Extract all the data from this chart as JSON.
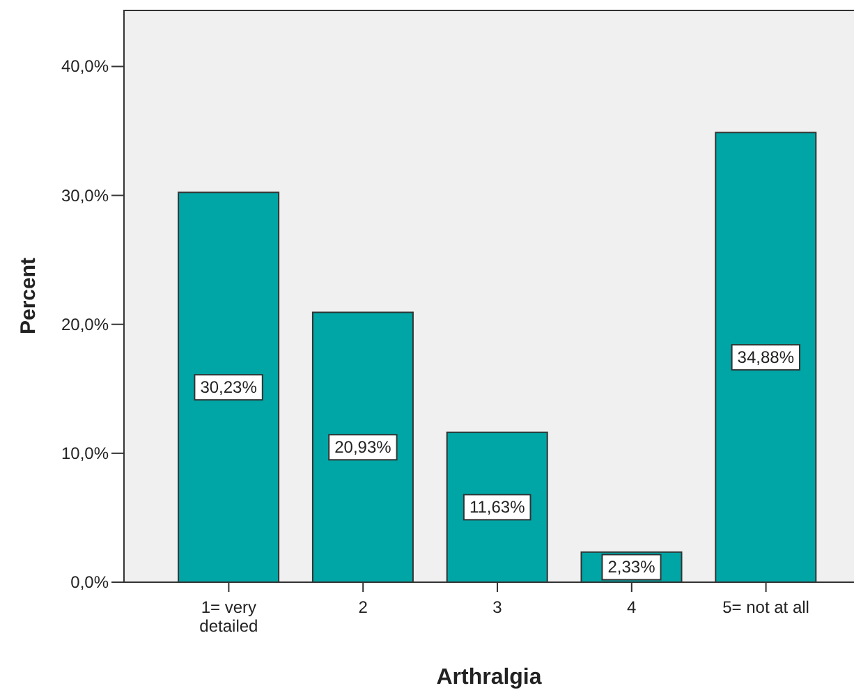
{
  "chart_data": {
    "type": "bar",
    "xlabel": "Arthralgia",
    "ylabel": "Percent",
    "categories": [
      "1= very detailed",
      "2",
      "3",
      "4",
      "5= not at all"
    ],
    "values": [
      30.23,
      20.93,
      11.63,
      2.33,
      34.88
    ],
    "color": "#00a5a5",
    "value_labels": [
      "30,23%",
      "20,93%",
      "11,63%",
      "2,33%",
      "34,88%"
    ],
    "ylim": [
      0,
      44.4
    ],
    "yticks": [
      {
        "value": 0,
        "label": "0,0%"
      },
      {
        "value": 10,
        "label": "10,0%"
      },
      {
        "value": 20,
        "label": "20,0%"
      },
      {
        "value": 30,
        "label": "30,0%"
      },
      {
        "value": 40,
        "label": "40,0%"
      }
    ]
  }
}
